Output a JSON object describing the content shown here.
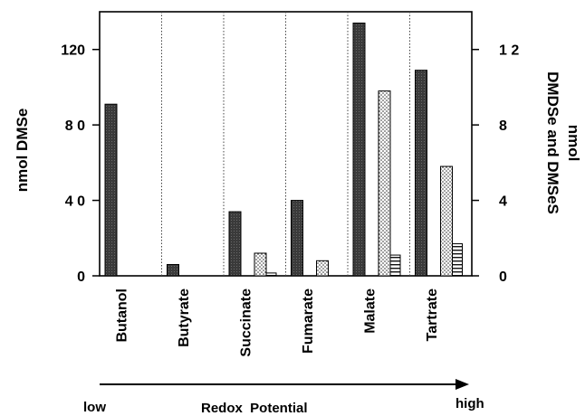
{
  "chart_data": {
    "type": "bar",
    "categories": [
      "Butanol",
      "Butyrate",
      "Succinate",
      "Fumarate",
      "Malate",
      "Tartrate"
    ],
    "series": [
      {
        "name": "DMSe",
        "axis": "left",
        "pattern": "dark-solid",
        "values": [
          91,
          6,
          34,
          40,
          134,
          109
        ]
      },
      {
        "name": "DMDSe",
        "axis": "right",
        "pattern": "dotted",
        "values": [
          0,
          0,
          1.2,
          0.8,
          9.8,
          5.8
        ]
      },
      {
        "name": "DMSeS",
        "axis": "right",
        "pattern": "horizontal-lines",
        "values": [
          0,
          0,
          0.15,
          0,
          1.1,
          1.7
        ]
      }
    ],
    "ylabel_left": "nmol DMSe",
    "ylabel_right_1": "nmol",
    "ylabel_right_2": "DMDSe and DMSeS",
    "ylim_left": [
      0,
      140
    ],
    "ylim_right": [
      0,
      14
    ],
    "yticks_left": [
      "0",
      "4 0",
      "8 0",
      "120"
    ],
    "yticks_left_values": [
      0,
      40,
      80,
      120
    ],
    "yticks_right": [
      "0",
      "4",
      "8",
      "1 2"
    ],
    "yticks_right_values": [
      0,
      4,
      8,
      12
    ],
    "gridlines": "dotted vertical separators between categories",
    "arrow": {
      "low": "low",
      "label": "Redox  Potential",
      "high": "high"
    }
  }
}
